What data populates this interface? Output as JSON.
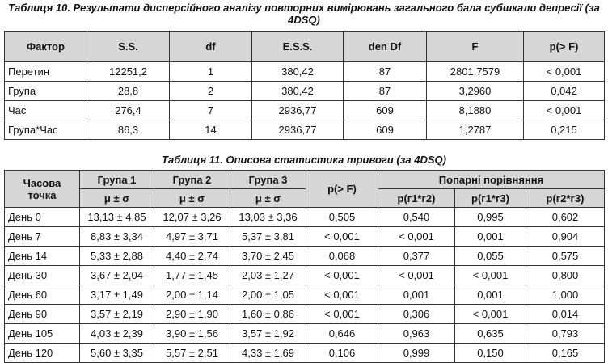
{
  "table10": {
    "caption": "Таблиця 10. Результати дисперсійного аналізу повторних вимірювань загального бала субшкали депресії (за 4DSQ)",
    "headers": [
      "Фактор",
      "S.S.",
      "df",
      "E.S.S.",
      "den Df",
      "F",
      "p(> F)"
    ],
    "rows": [
      [
        "Перетин",
        "12251,2",
        "1",
        "380,42",
        "87",
        "2801,7579",
        "< 0,001"
      ],
      [
        "Група",
        "28,8",
        "2",
        "380,42",
        "87",
        "3,2960",
        "0,042"
      ],
      [
        "Час",
        "276,4",
        "7",
        "2936,77",
        "609",
        "8,1880",
        "< 0,001"
      ],
      [
        "Група*Час",
        "86,3",
        "14",
        "2936,77",
        "609",
        "1,2787",
        "0,215"
      ]
    ]
  },
  "table11": {
    "caption": "Таблиця 11. Описова статистика тривоги (за 4DSQ)",
    "header_time": "Часова точка",
    "header_group1": "Група 1",
    "header_group2": "Група 2",
    "header_group3": "Група 3",
    "header_mu": "μ ± σ",
    "header_p": "p(> F)",
    "header_pairwise": "Попарні порівняння",
    "header_p12": "p(г1*г2)",
    "header_p13": "p(г1*г3)",
    "header_p23": "p(г2*г3)",
    "rows": [
      [
        "День 0",
        "13,13 ± 4,85",
        "12,07 ± 3,26",
        "13,03 ± 3,36",
        "0,505",
        "0,540",
        "0,995",
        "0,602"
      ],
      [
        "День 7",
        "8,83 ± 3,34",
        "4,97 ± 3,71",
        "5,37 ± 3,81",
        "< 0,001",
        "< 0,001",
        "0,001",
        "0,904"
      ],
      [
        "День 14",
        "5,33 ± 2,88",
        "4,40 ± 2,74",
        "3,70 ± 2,45",
        "0,068",
        "0,377",
        "0,055",
        "0,575"
      ],
      [
        "День 30",
        "3,67 ± 2,04",
        "1,77 ± 1,45",
        "2,03 ± 1,27",
        "< 0,001",
        "< 0,001",
        "< 0,001",
        "0,800"
      ],
      [
        "День 60",
        "3,17 ± 1,49",
        "2,00 ± 1,14",
        "2,00 ± 1,05",
        "< 0,001",
        "0,001",
        "0,001",
        "1,000"
      ],
      [
        "День 90",
        "3,57 ± 2,19",
        "2,90 ± 1,90",
        "1,60 ± 0,86",
        "< 0,001",
        "0,306",
        "< 0,001",
        "0,014"
      ],
      [
        "День 105",
        "4,03 ± 2,39",
        "3,90 ± 1,56",
        "3,57 ± 1,92",
        "0,646",
        "0,963",
        "0,635",
        "0,793"
      ],
      [
        "День 120",
        "5,60 ± 3,35",
        "5,57 ± 2,51",
        "4,33 ± 1,69",
        "0,106",
        "0,999",
        "0,150",
        "0,165"
      ]
    ]
  }
}
